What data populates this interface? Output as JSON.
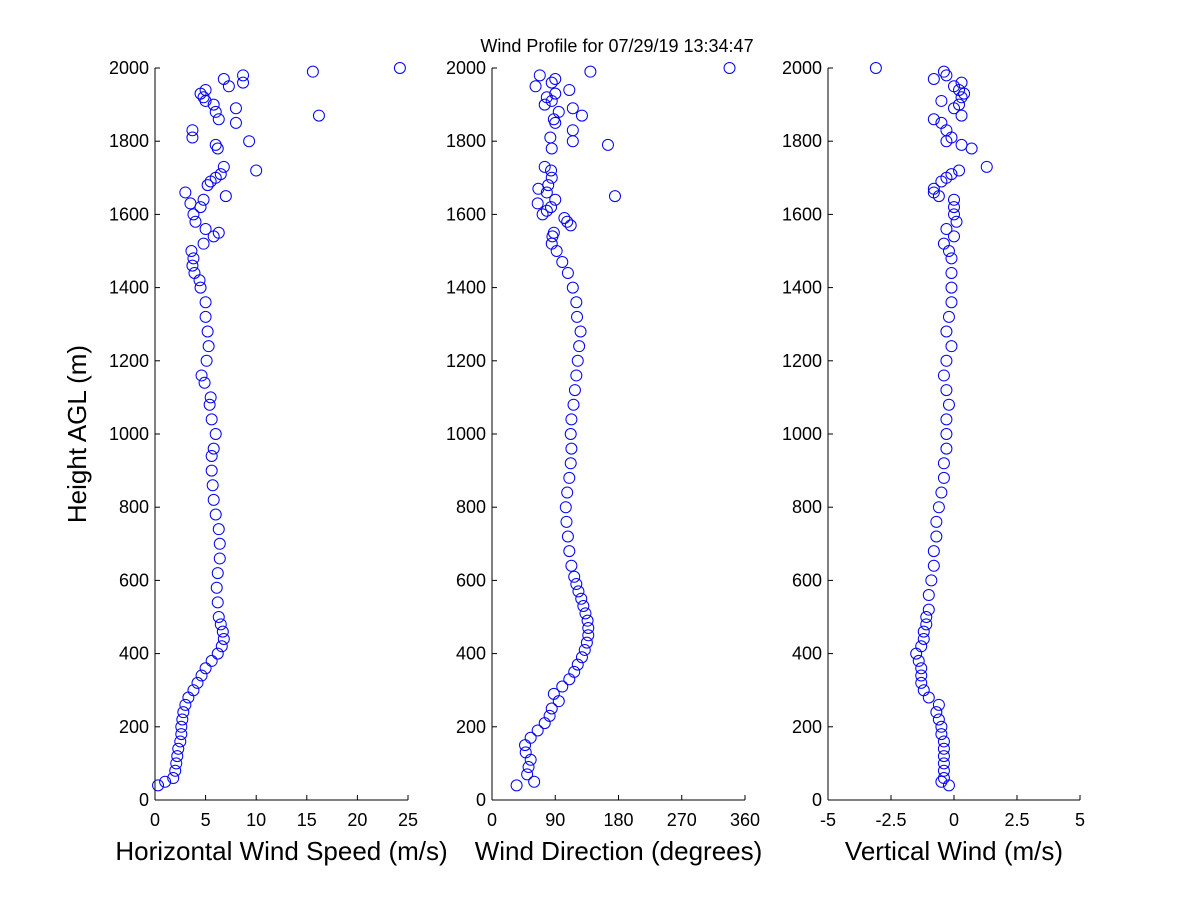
{
  "title": "Wind Profile for  07/29/19 13:34:47",
  "chart_data": [
    {
      "type": "scatter",
      "xlabel": "Horizontal Wind Speed (m/s)",
      "ylabel": "Height AGL (m)",
      "color": "#0000ff",
      "xlim": [
        0,
        25
      ],
      "xticks": [
        0,
        5,
        10,
        15,
        20,
        25
      ],
      "ylim": [
        0,
        2000
      ],
      "yticks": [
        0,
        200,
        400,
        600,
        800,
        1000,
        1200,
        1400,
        1600,
        1800,
        2000
      ],
      "x": [
        0.3,
        1,
        1.8,
        2.0,
        2.1,
        2.2,
        2.3,
        2.5,
        2.6,
        2.6,
        2.7,
        2.8,
        3.0,
        3.3,
        3.8,
        4.2,
        4.6,
        5.0,
        5.6,
        6.2,
        6.6,
        6.8,
        6.7,
        6.5,
        6.3,
        6.2,
        6.1,
        6.2,
        6.4,
        6.4,
        6.3,
        6.0,
        5.8,
        5.7,
        5.6,
        5.6,
        5.8,
        6.0,
        5.6,
        5.4,
        5.5,
        4.9,
        4.6,
        5.1,
        5.3,
        5.2,
        5.0,
        5.0,
        4.5,
        4.4,
        3.9,
        3.7,
        3.8,
        3.6,
        4.8,
        5.8,
        6.3,
        5.0,
        4.0,
        3.8,
        4.5,
        3.5,
        4.8,
        3.0,
        7.0,
        5.2,
        5.5,
        6.0,
        6.5,
        10.0,
        6.8,
        6.2,
        6.0,
        9.3,
        3.7,
        3.7,
        8.0,
        6.3,
        16.2,
        6.0,
        8.0,
        5.8,
        5.0,
        4.8,
        4.5,
        5.0,
        7.3,
        8.7,
        6.8,
        8.7,
        15.6,
        24.2
      ],
      "y": [
        40,
        50,
        60,
        80,
        100,
        120,
        140,
        160,
        180,
        200,
        220,
        240,
        260,
        280,
        300,
        320,
        340,
        360,
        380,
        400,
        420,
        440,
        460,
        480,
        500,
        540,
        580,
        620,
        660,
        700,
        740,
        780,
        820,
        860,
        900,
        940,
        960,
        1000,
        1040,
        1080,
        1100,
        1140,
        1160,
        1200,
        1240,
        1280,
        1320,
        1360,
        1400,
        1420,
        1440,
        1460,
        1480,
        1500,
        1520,
        1540,
        1550,
        1560,
        1580,
        1600,
        1620,
        1630,
        1640,
        1660,
        1650,
        1680,
        1690,
        1700,
        1710,
        1720,
        1730,
        1780,
        1790,
        1800,
        1810,
        1830,
        1850,
        1860,
        1870,
        1880,
        1890,
        1900,
        1910,
        1920,
        1930,
        1940,
        1950,
        1960,
        1970,
        1980,
        1990,
        2000
      ]
    },
    {
      "type": "scatter",
      "xlabel": "Wind Direction (degrees)",
      "color": "#0000ff",
      "xlim": [
        0,
        360
      ],
      "xticks": [
        0,
        90,
        180,
        270,
        360
      ],
      "ylim": [
        0,
        2000
      ],
      "yticks": [
        0,
        200,
        400,
        600,
        800,
        1000,
        1200,
        1400,
        1600,
        1800,
        2000
      ],
      "x": [
        35,
        60,
        50,
        52,
        55,
        48,
        47,
        55,
        65,
        75,
        82,
        85,
        95,
        88,
        100,
        110,
        117,
        122,
        128,
        132,
        135,
        137,
        137,
        136,
        133,
        130,
        127,
        123,
        120,
        117,
        113,
        110,
        108,
        106,
        105,
        107,
        110,
        112,
        113,
        112,
        113,
        116,
        118,
        120,
        122,
        124,
        126,
        121,
        120,
        115,
        108,
        100,
        92,
        85,
        86,
        88,
        112,
        107,
        103,
        72,
        78,
        84,
        65,
        90,
        175,
        78,
        66,
        80,
        85,
        84,
        75,
        85,
        165,
        115,
        83,
        115,
        90,
        88,
        128,
        95,
        115,
        75,
        85,
        78,
        90,
        110,
        62,
        85,
        90,
        68,
        140,
        338
      ],
      "y": [
        40,
        50,
        70,
        90,
        110,
        130,
        150,
        170,
        190,
        210,
        230,
        250,
        270,
        290,
        310,
        330,
        350,
        370,
        390,
        410,
        430,
        450,
        470,
        490,
        510,
        530,
        550,
        570,
        590,
        610,
        640,
        680,
        720,
        760,
        800,
        840,
        880,
        920,
        960,
        1000,
        1040,
        1080,
        1120,
        1160,
        1200,
        1240,
        1280,
        1320,
        1360,
        1400,
        1440,
        1470,
        1500,
        1520,
        1540,
        1550,
        1570,
        1580,
        1590,
        1600,
        1610,
        1620,
        1630,
        1640,
        1650,
        1660,
        1670,
        1680,
        1700,
        1720,
        1730,
        1780,
        1790,
        1800,
        1810,
        1830,
        1850,
        1860,
        1870,
        1880,
        1890,
        1900,
        1910,
        1920,
        1930,
        1940,
        1950,
        1960,
        1970,
        1980,
        1990,
        2000
      ]
    },
    {
      "type": "scatter",
      "xlabel": "Vertical Wind (m/s)",
      "color": "#0000ff",
      "xlim": [
        -5,
        5
      ],
      "xticks": [
        -5,
        -2.5,
        0,
        2.5,
        5
      ],
      "ylim": [
        0,
        2000
      ],
      "yticks": [
        0,
        200,
        400,
        600,
        800,
        1000,
        1200,
        1400,
        1600,
        1800,
        2000
      ],
      "x": [
        -0.2,
        -0.5,
        -0.4,
        -0.4,
        -0.4,
        -0.4,
        -0.4,
        -0.4,
        -0.5,
        -0.5,
        -0.6,
        -0.7,
        -0.6,
        -1.0,
        -1.2,
        -1.3,
        -1.3,
        -1.3,
        -1.4,
        -1.5,
        -1.3,
        -1.2,
        -1.2,
        -1.1,
        -1.1,
        -1.0,
        -1.0,
        -0.9,
        -0.8,
        -0.8,
        -0.7,
        -0.7,
        -0.6,
        -0.5,
        -0.4,
        -0.4,
        -0.3,
        -0.3,
        -0.3,
        -0.2,
        -0.3,
        -0.4,
        -0.3,
        -0.1,
        -0.3,
        -0.2,
        -0.1,
        -0.1,
        -0.1,
        -0.1,
        -0.2,
        -0.4,
        0.0,
        -0.3,
        0.1,
        0.0,
        0.0,
        0.0,
        -0.6,
        -0.8,
        -0.8,
        -0.5,
        -0.3,
        -0.1,
        0.2,
        1.3,
        0.7,
        0.3,
        -0.3,
        -0.1,
        -0.3,
        -0.5,
        -0.8,
        0.3,
        0.0,
        0.2,
        -0.5,
        0.3,
        0.4,
        0.2,
        0.0,
        0.3,
        -0.8,
        -0.3,
        -0.4,
        -3.1
      ],
      "y": [
        40,
        50,
        60,
        80,
        100,
        120,
        140,
        160,
        180,
        200,
        220,
        240,
        260,
        280,
        300,
        320,
        340,
        360,
        380,
        400,
        420,
        440,
        460,
        480,
        500,
        520,
        560,
        600,
        640,
        680,
        720,
        760,
        800,
        840,
        880,
        920,
        960,
        1000,
        1040,
        1080,
        1120,
        1160,
        1200,
        1240,
        1280,
        1320,
        1360,
        1400,
        1440,
        1480,
        1500,
        1520,
        1540,
        1560,
        1580,
        1600,
        1620,
        1640,
        1650,
        1660,
        1670,
        1690,
        1700,
        1710,
        1720,
        1730,
        1780,
        1790,
        1800,
        1810,
        1830,
        1850,
        1860,
        1870,
        1890,
        1900,
        1910,
        1920,
        1930,
        1940,
        1950,
        1960,
        1970,
        1980,
        1990,
        2000
      ]
    }
  ]
}
